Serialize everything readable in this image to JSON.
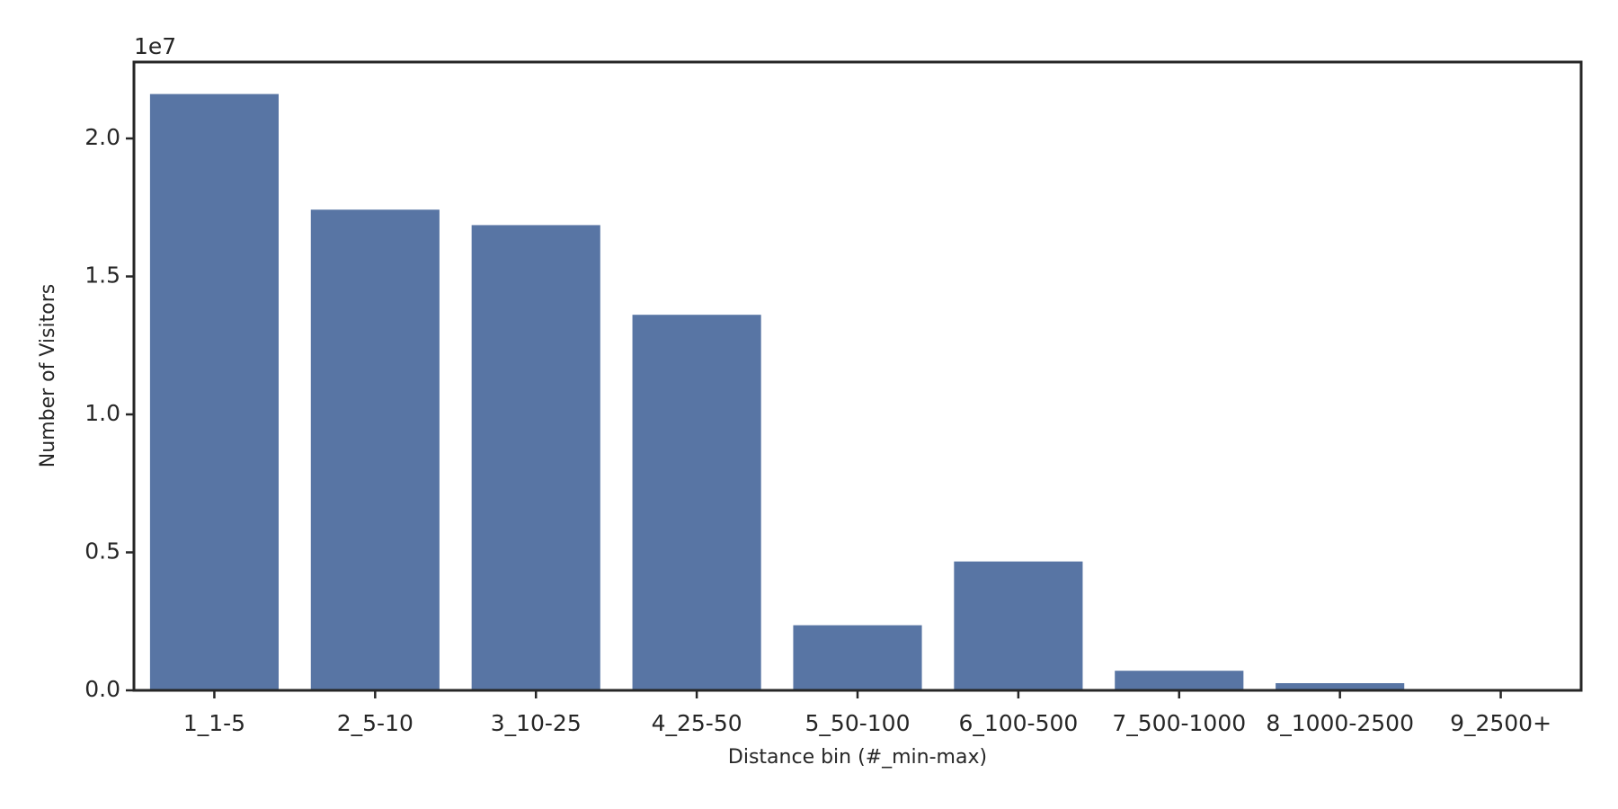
{
  "chart_data": {
    "type": "bar",
    "x_label": "Distance bin (#_min-max)",
    "y_label": "Number of Visitors",
    "y_offset_label": "1e7",
    "categories": [
      "1_1-5",
      "2_5-10",
      "3_10-25",
      "4_25-50",
      "5_50-100",
      "6_100-500",
      "7_500-1000",
      "8_1000-2500",
      "9_2500+"
    ],
    "values": [
      2.161,
      1.742,
      1.686,
      1.361,
      0.236,
      0.467,
      0.071,
      0.026,
      0.002
    ],
    "color": "#5875a4",
    "ylim": [
      0,
      2.277
    ],
    "yticks": [
      {
        "value": 0,
        "label": "0.0"
      },
      {
        "value": 0.5,
        "label": "0.5"
      },
      {
        "value": 1,
        "label": "1.0"
      },
      {
        "value": 1.5,
        "label": "1.5"
      },
      {
        "value": 2,
        "label": "2.0"
      }
    ]
  }
}
